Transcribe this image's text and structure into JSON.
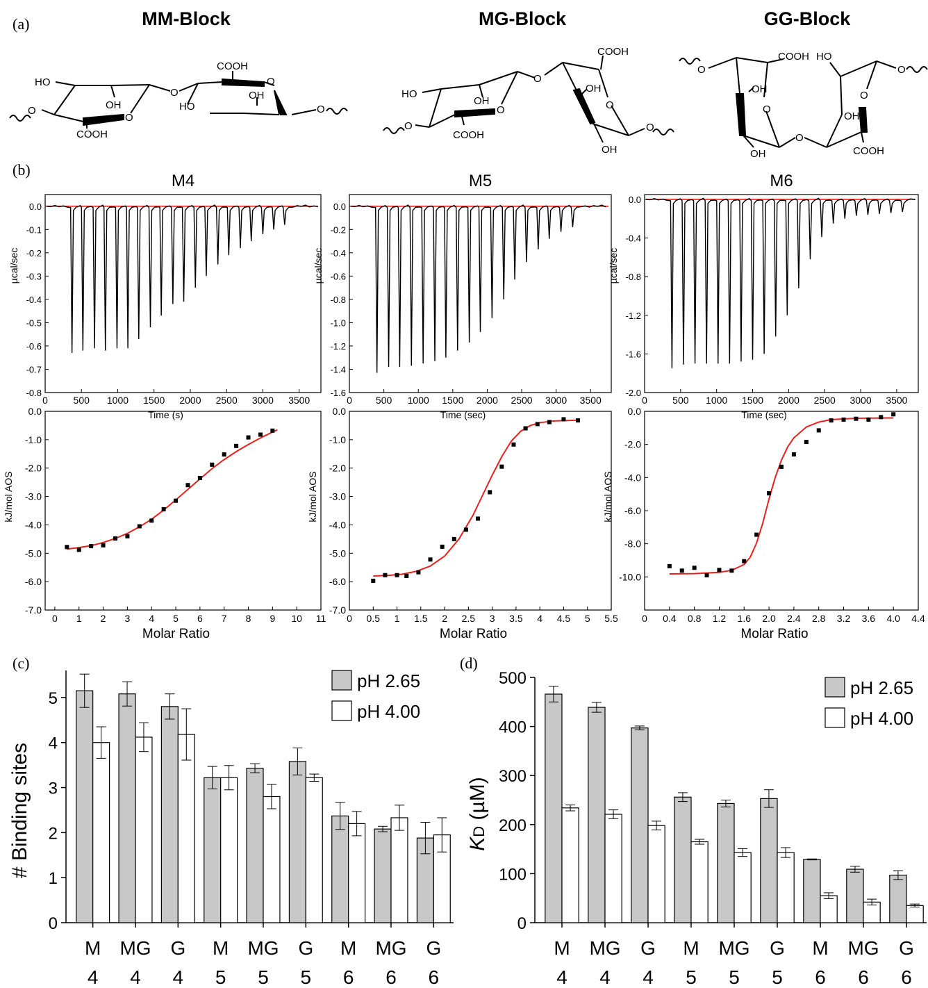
{
  "panel_labels": {
    "a": "(a)",
    "b": "(b)",
    "c": "(c)",
    "d": "(d)"
  },
  "structures": {
    "mm": {
      "title": "MM-Block",
      "labels": [
        "HO",
        "OH",
        "O",
        "O",
        "COOH",
        "COOH",
        "O",
        "HO",
        "OH",
        "O",
        "O"
      ]
    },
    "mg": {
      "title": "MG-Block",
      "labels": [
        "HO",
        "OH",
        "O",
        "O",
        "COOH",
        "O",
        "OH",
        "COOH",
        "O",
        "OH",
        "O"
      ]
    },
    "gg": {
      "title": "GG-Block",
      "labels": [
        "O",
        "COOH",
        "HO",
        "O",
        "OH",
        "O",
        "OH",
        "O",
        "OH",
        "COOH",
        "O"
      ]
    }
  },
  "chart_data": [
    {
      "type": "line",
      "panel": "b-top",
      "title": "M4",
      "xlabel": "Time (s)",
      "ylabel": "µcal/sec",
      "xlim": [
        0,
        3800
      ],
      "ylim": [
        -0.8,
        0.05
      ],
      "xticks": [
        "0",
        "500",
        "1000",
        "1500",
        "2000",
        "2500",
        "3000",
        "3500"
      ],
      "yticks": [
        "0.0",
        "-0.1",
        "-0.2",
        "-0.3",
        "-0.4",
        "-0.5",
        "-0.6",
        "-0.7",
        "-0.8"
      ],
      "injection_times": [
        370,
        520,
        680,
        830,
        990,
        1140,
        1290,
        1450,
        1600,
        1760,
        1910,
        2070,
        2220,
        2380,
        2530,
        2690,
        2840,
        3000,
        3150,
        3300
      ],
      "peak_values": [
        -0.63,
        -0.62,
        -0.61,
        -0.62,
        -0.61,
        -0.61,
        -0.57,
        -0.52,
        -0.47,
        -0.42,
        -0.41,
        -0.35,
        -0.3,
        -0.25,
        -0.21,
        -0.18,
        -0.15,
        -0.12,
        -0.1,
        -0.08
      ],
      "colors": {
        "trace": "#000000",
        "baseline": "#e8211d"
      }
    },
    {
      "type": "line",
      "panel": "b-top",
      "title": "M5",
      "xlabel": "Time (sec)",
      "ylabel": "µcal/sec",
      "xlim": [
        0,
        3800
      ],
      "ylim": [
        -1.6,
        0.1
      ],
      "xticks": [
        "0",
        "500",
        "1000",
        "1500",
        "2000",
        "2500",
        "3000",
        "3500"
      ],
      "yticks": [
        "0.0",
        "-0.2",
        "-0.4",
        "-0.6",
        "-0.8",
        "-1.0",
        "-1.2",
        "-1.4",
        "-1.6"
      ],
      "injection_times": [
        400,
        570,
        730,
        900,
        1070,
        1240,
        1400,
        1570,
        1740,
        1900,
        2070,
        2240,
        2400,
        2570,
        2740,
        2900,
        3070,
        3240
      ],
      "peak_values": [
        -1.43,
        -1.38,
        -1.38,
        -1.37,
        -1.35,
        -1.33,
        -1.3,
        -1.24,
        -1.17,
        -1.08,
        -0.96,
        -0.8,
        -0.63,
        -0.48,
        -0.37,
        -0.28,
        -0.22,
        -0.18
      ],
      "colors": {
        "trace": "#000000",
        "baseline": "#e8211d"
      }
    },
    {
      "type": "line",
      "panel": "b-top",
      "title": "M6",
      "xlabel": "Time (sec)",
      "ylabel": "µcal/sec",
      "xlim": [
        0,
        3800
      ],
      "ylim": [
        -2.0,
        0.05
      ],
      "xticks": [
        "0",
        "500",
        "1000",
        "1500",
        "2000",
        "2500",
        "3000",
        "3500"
      ],
      "yticks": [
        "0.0",
        "-0.4",
        "-0.8",
        "-1.2",
        "-1.6",
        "-2.0"
      ],
      "injection_times": [
        380,
        540,
        700,
        860,
        1020,
        1180,
        1340,
        1500,
        1660,
        1820,
        1980,
        2140,
        2300,
        2460,
        2620,
        2780,
        2940,
        3100,
        3260,
        3420,
        3580
      ],
      "peak_values": [
        -1.75,
        -1.71,
        -1.7,
        -1.7,
        -1.7,
        -1.7,
        -1.68,
        -1.66,
        -1.6,
        -1.42,
        -1.2,
        -0.92,
        -0.62,
        -0.39,
        -0.25,
        -0.2,
        -0.17,
        -0.16,
        -0.15,
        -0.14,
        -0.13
      ],
      "colors": {
        "trace": "#000000",
        "baseline": "#e8211d"
      }
    },
    {
      "type": "scatter",
      "panel": "b-bottom",
      "xlabel": "Molar Ratio",
      "ylabel": "kJ/mol AOS",
      "xlim": [
        -0.4,
        11
      ],
      "ylim": [
        -7.0,
        0.0
      ],
      "xticks": [
        "0",
        "1",
        "2",
        "3",
        "4",
        "5",
        "6",
        "7",
        "8",
        "9",
        "10",
        "11"
      ],
      "yticks": [
        "0.0",
        "-1.0",
        "-2.0",
        "-3.0",
        "-4.0",
        "-5.0",
        "-6.0",
        "-7.0"
      ],
      "x": [
        0.5,
        1.0,
        1.5,
        2.0,
        2.5,
        3.0,
        3.5,
        4.0,
        4.5,
        5.0,
        5.5,
        6.0,
        6.5,
        7.0,
        7.5,
        8.0,
        8.5,
        9.0
      ],
      "y": [
        -4.78,
        -4.88,
        -4.75,
        -4.72,
        -4.48,
        -4.4,
        -4.05,
        -3.85,
        -3.45,
        -3.15,
        -2.6,
        -2.35,
        -1.88,
        -1.52,
        -1.22,
        -0.92,
        -0.82,
        -0.68
      ],
      "fit_x": [
        0.5,
        1.0,
        1.5,
        2.0,
        2.5,
        3.0,
        3.5,
        4.0,
        4.5,
        5.0,
        5.5,
        6.0,
        6.5,
        7.0,
        7.5,
        8.0,
        8.5,
        9.0,
        9.2
      ],
      "fit_y": [
        -4.85,
        -4.8,
        -4.73,
        -4.62,
        -4.48,
        -4.3,
        -4.07,
        -3.8,
        -3.48,
        -3.12,
        -2.75,
        -2.38,
        -2.02,
        -1.7,
        -1.42,
        -1.17,
        -0.94,
        -0.73,
        -0.65
      ],
      "colors": {
        "points": "#000000",
        "fit": "#e8211d"
      }
    },
    {
      "type": "scatter",
      "panel": "b-bottom",
      "xlabel": "Molar Ratio",
      "ylabel": "kJ/mol AOS",
      "xlim": [
        0,
        5.5
      ],
      "ylim": [
        -7.0,
        0.0
      ],
      "xticks": [
        "0",
        "0.5",
        "1",
        "1.5",
        "2",
        "2.5",
        "3",
        "3.5",
        "4",
        "4.5",
        "5",
        "5.5"
      ],
      "yticks": [
        "0.0",
        "-1.0",
        "-2.0",
        "-3.0",
        "-4.0",
        "-5.0",
        "-6.0",
        "-7.0"
      ],
      "x": [
        0.5,
        0.75,
        1.0,
        1.2,
        1.45,
        1.7,
        1.95,
        2.2,
        2.45,
        2.7,
        2.95,
        3.2,
        3.45,
        3.7,
        3.95,
        4.2,
        4.5,
        4.8
      ],
      "y": [
        -5.97,
        -5.77,
        -5.77,
        -5.8,
        -5.67,
        -5.22,
        -4.77,
        -4.5,
        -4.17,
        -3.78,
        -2.85,
        -1.95,
        -1.17,
        -0.6,
        -0.45,
        -0.38,
        -0.28,
        -0.32
      ],
      "fit_x": [
        0.5,
        0.8,
        1.1,
        1.4,
        1.7,
        2.0,
        2.3,
        2.6,
        2.8,
        3.0,
        3.2,
        3.4,
        3.6,
        3.8,
        4.0,
        4.3,
        4.8
      ],
      "fit_y": [
        -5.8,
        -5.78,
        -5.74,
        -5.64,
        -5.45,
        -5.1,
        -4.5,
        -3.65,
        -2.95,
        -2.25,
        -1.6,
        -1.05,
        -0.7,
        -0.5,
        -0.4,
        -0.34,
        -0.31
      ],
      "colors": {
        "points": "#000000",
        "fit": "#e8211d"
      }
    },
    {
      "type": "scatter",
      "panel": "b-bottom",
      "xlabel": "Molar Ratio",
      "ylabel": "kJ/mol AOS",
      "xlim": [
        0,
        4.4
      ],
      "ylim": [
        -12.0,
        0.0
      ],
      "xticks": [
        "0",
        "0.4",
        "0.8",
        "1.2",
        "1.6",
        "2.0",
        "2.4",
        "2.8",
        "3.2",
        "3.6",
        "4.0",
        "4.4"
      ],
      "yticks": [
        "0.0",
        "-2.0",
        "-4.0",
        "-6.0",
        "-8.0",
        "-10.0"
      ],
      "x": [
        0.4,
        0.6,
        0.8,
        1.0,
        1.2,
        1.4,
        1.6,
        1.8,
        2.0,
        2.2,
        2.4,
        2.6,
        2.8,
        3.0,
        3.2,
        3.4,
        3.6,
        3.8,
        4.0
      ],
      "y": [
        -9.35,
        -9.62,
        -9.45,
        -9.9,
        -9.58,
        -9.62,
        -9.05,
        -7.45,
        -4.95,
        -3.35,
        -2.6,
        -1.85,
        -1.15,
        -0.55,
        -0.5,
        -0.45,
        -0.5,
        -0.35,
        -0.18
      ],
      "fit_x": [
        0.4,
        0.8,
        1.2,
        1.4,
        1.6,
        1.7,
        1.8,
        1.9,
        2.0,
        2.1,
        2.2,
        2.3,
        2.4,
        2.6,
        2.8,
        3.0,
        3.4,
        4.0
      ],
      "fit_y": [
        -9.82,
        -9.8,
        -9.72,
        -9.6,
        -9.25,
        -8.8,
        -7.95,
        -6.75,
        -5.3,
        -4.0,
        -2.95,
        -2.15,
        -1.6,
        -0.95,
        -0.65,
        -0.5,
        -0.42,
        -0.4
      ],
      "colors": {
        "points": "#000000",
        "fit": "#e8211d"
      }
    },
    {
      "type": "bar",
      "panel": "c",
      "ylabel": "# Binding sites",
      "ylim": [
        0,
        5.6
      ],
      "yticks": [
        "0",
        "1",
        "2",
        "3",
        "4",
        "5"
      ],
      "categories": [
        [
          "M",
          "4"
        ],
        [
          "MG",
          "4"
        ],
        [
          "G",
          "4"
        ],
        [
          "M",
          "5"
        ],
        [
          "MG",
          "5"
        ],
        [
          "G",
          "5"
        ],
        [
          "M",
          "6"
        ],
        [
          "MG",
          "6"
        ],
        [
          "G",
          "6"
        ]
      ],
      "series": [
        {
          "name": "pH 2.65",
          "values": [
            5.15,
            5.08,
            4.8,
            3.22,
            3.43,
            3.58,
            2.37,
            2.08,
            1.88
          ],
          "errors": [
            0.37,
            0.27,
            0.28,
            0.25,
            0.1,
            0.3,
            0.3,
            0.06,
            0.35
          ],
          "color": "#c8c8c8"
        },
        {
          "name": "pH 4.00",
          "values": [
            4.0,
            4.12,
            4.18,
            3.22,
            2.8,
            3.22,
            2.2,
            2.33,
            1.95
          ],
          "errors": [
            0.35,
            0.32,
            0.57,
            0.27,
            0.27,
            0.08,
            0.27,
            0.28,
            0.38
          ],
          "color": "#ffffff"
        }
      ]
    },
    {
      "type": "bar",
      "panel": "d",
      "ylabel": "KD (µM)",
      "ylabel_main": "K",
      "ylabel_sub": "D",
      "ylabel_rest": " (µM)",
      "ylim": [
        0,
        500
      ],
      "yticks": [
        "0",
        "100",
        "200",
        "300",
        "400",
        "500"
      ],
      "categories": [
        [
          "M",
          "4"
        ],
        [
          "MG",
          "4"
        ],
        [
          "G",
          "4"
        ],
        [
          "M",
          "5"
        ],
        [
          "MG",
          "5"
        ],
        [
          "G",
          "5"
        ],
        [
          "M",
          "6"
        ],
        [
          "MG",
          "6"
        ],
        [
          "G",
          "6"
        ]
      ],
      "series": [
        {
          "name": "pH 2.65",
          "values": [
            466,
            439,
            397,
            256,
            243,
            253,
            129,
            109,
            97
          ],
          "errors": [
            16,
            10,
            4,
            9,
            7,
            18,
            1,
            6,
            9
          ],
          "color": "#c8c8c8"
        },
        {
          "name": "pH 4.00",
          "values": [
            234,
            221,
            198,
            165,
            143,
            143,
            55,
            42,
            35
          ],
          "errors": [
            6,
            9,
            9,
            5,
            8,
            10,
            6,
            6,
            3
          ],
          "color": "#ffffff"
        }
      ]
    }
  ]
}
